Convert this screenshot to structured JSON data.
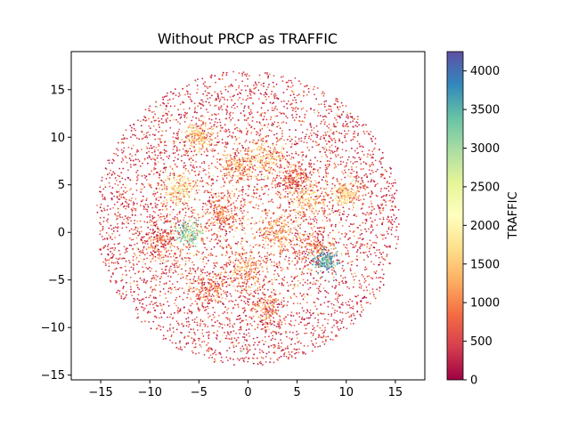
{
  "chart_data": {
    "type": "scatter",
    "title": "Without PRCP as TRAFFIC",
    "xlabel": "",
    "ylabel": "",
    "xlim": [
      -18,
      18
    ],
    "ylim": [
      -15.5,
      19
    ],
    "x_ticks": [
      -15,
      -10,
      -5,
      0,
      5,
      10,
      15
    ],
    "y_ticks": [
      -15,
      -10,
      -5,
      0,
      5,
      10,
      15
    ],
    "x_tick_labels": [
      "−15",
      "−10",
      "−5",
      "0",
      "5",
      "10",
      "15"
    ],
    "y_tick_labels": [
      "−15",
      "−10",
      "−5",
      "0",
      "5",
      "10",
      "15"
    ],
    "grid": false,
    "colormap": "Spectral",
    "colorbar": {
      "label": "TRAFFIC",
      "range": [
        0,
        4250
      ],
      "ticks": [
        0,
        500,
        1000,
        1500,
        2000,
        2500,
        3000,
        3500,
        4000
      ],
      "tick_labels": [
        "0",
        "500",
        "1000",
        "1500",
        "2000",
        "2500",
        "3000",
        "3500",
        "4000"
      ]
    },
    "point_cloud": {
      "shape": "disk",
      "center": [
        0,
        1.5
      ],
      "radius": 15.5,
      "n_points": 5000,
      "dominant_values": "0–1500",
      "clusters": [
        {
          "x": -5,
          "y": 10,
          "r": 1.0,
          "traffic": 1500
        },
        {
          "x": -7,
          "y": 4.5,
          "r": 1.2,
          "traffic": 1700
        },
        {
          "x": -3,
          "y": 2,
          "r": 1.5,
          "traffic": 900
        },
        {
          "x": -1,
          "y": 7,
          "r": 1.2,
          "traffic": 1200
        },
        {
          "x": 2,
          "y": 8,
          "r": 1.5,
          "traffic": 1400
        },
        {
          "x": 4.5,
          "y": 5.5,
          "r": 1.2,
          "traffic": 700
        },
        {
          "x": 6,
          "y": 3.5,
          "r": 1.5,
          "traffic": 1600
        },
        {
          "x": 7,
          "y": -1.5,
          "r": 1.5,
          "traffic": 1000
        },
        {
          "x": 8,
          "y": -3,
          "r": 0.8,
          "traffic": 3600
        },
        {
          "x": -9,
          "y": -1,
          "r": 1.5,
          "traffic": 800
        },
        {
          "x": 0,
          "y": -4,
          "r": 1.5,
          "traffic": 1100
        },
        {
          "x": 3,
          "y": 0,
          "r": 1.5,
          "traffic": 1300
        },
        {
          "x": -4,
          "y": -6,
          "r": 1.2,
          "traffic": 900
        },
        {
          "x": 10,
          "y": 4,
          "r": 1.0,
          "traffic": 1500
        },
        {
          "x": 2,
          "y": -8,
          "r": 1.2,
          "traffic": 1000
        },
        {
          "x": -6,
          "y": 0,
          "r": 1.0,
          "traffic": 3000
        }
      ]
    }
  }
}
